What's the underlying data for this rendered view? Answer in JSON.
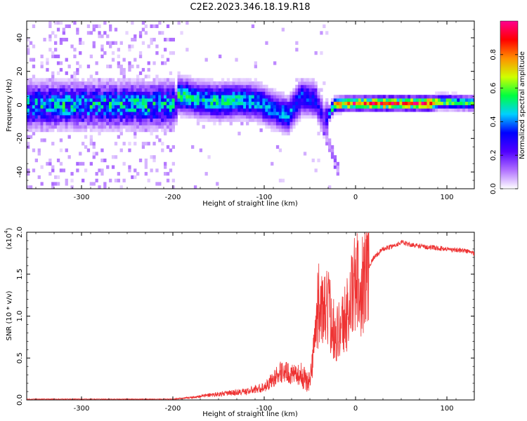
{
  "title": "C2E2.2023.346.18.19.R18",
  "chart_data": [
    {
      "type": "heatmap",
      "xlabel": "Height of straight line (km)",
      "ylabel": "Frequency (Hz)",
      "xlim": [
        -360,
        130
      ],
      "ylim": [
        -50,
        50
      ],
      "xticks": [
        -300,
        -200,
        -100,
        0,
        100
      ],
      "yticks": [
        -40,
        -20,
        0,
        20,
        40
      ],
      "colorbar": {
        "label": "Normalized spectral amplitude",
        "range": [
          0.0,
          1.0
        ],
        "ticks": [
          "0.0",
          "0.2",
          "0.4",
          "0.6",
          "0.8"
        ],
        "colors": [
          "#ffffff",
          "#b070ff",
          "#5000ff",
          "#0000ff",
          "#00d0ff",
          "#00ff40",
          "#d0ff00",
          "#ff9000",
          "#ff0000",
          "#ff0090"
        ]
      },
      "noise_region": [
        -360,
        -200
      ],
      "ridge": [
        {
          "x": -195,
          "f": 6,
          "amp": 0.5
        },
        {
          "x": -170,
          "f": 3,
          "amp": 0.45
        },
        {
          "x": -150,
          "f": 2,
          "amp": 0.5
        },
        {
          "x": -130,
          "f": 3,
          "amp": 0.45
        },
        {
          "x": -110,
          "f": 2,
          "amp": 0.45
        },
        {
          "x": -90,
          "f": -3,
          "amp": 0.4
        },
        {
          "x": -75,
          "f": -6,
          "amp": 0.4
        },
        {
          "x": -60,
          "f": 5,
          "amp": 0.35
        },
        {
          "x": -45,
          "f": 3,
          "amp": 0.3
        },
        {
          "x": -35,
          "f": -10,
          "amp": 0.2
        },
        {
          "x": -25,
          "f": 0,
          "amp": 0.7
        },
        {
          "x": -10,
          "f": 1,
          "amp": 0.8
        },
        {
          "x": 0,
          "f": 1,
          "amp": 0.85
        },
        {
          "x": 30,
          "f": 1,
          "amp": 0.9
        },
        {
          "x": 80,
          "f": 1,
          "amp": 0.9
        },
        {
          "x": 90,
          "f": 2,
          "amp": 0.6
        },
        {
          "x": 130,
          "f": 1,
          "amp": 0.5
        }
      ]
    },
    {
      "type": "line",
      "xlabel": "Height of straight line (km)",
      "ylabel": "SNR (10 * v/v)",
      "yscale_label": "(x10",
      "yscale_exp": "4",
      "xlim": [
        -360,
        130
      ],
      "ylim": [
        0.0,
        2.0
      ],
      "xticks": [
        -300,
        -200,
        -100,
        0,
        100
      ],
      "yticks": [
        "0.0",
        "0.5",
        "1.0",
        "1.5",
        "2.0"
      ],
      "line_color": "#ee3333",
      "series": [
        {
          "x": [
            -360,
            -300,
            -250,
            -200,
            -180,
            -160,
            -140,
            -120,
            -100,
            -90,
            -80,
            -70,
            -60,
            -50,
            -45,
            -40,
            -35,
            -30,
            -25,
            -20,
            -15,
            -10,
            -5,
            0,
            5,
            10,
            15,
            20,
            25,
            30,
            40,
            50,
            60,
            80,
            100,
            120,
            130
          ],
          "values": [
            0.01,
            0.01,
            0.01,
            0.01,
            0.03,
            0.06,
            0.08,
            0.1,
            0.15,
            0.25,
            0.35,
            0.3,
            0.3,
            0.2,
            0.7,
            1.2,
            1.0,
            1.1,
            0.9,
            0.8,
            0.9,
            1.0,
            1.2,
            1.4,
            1.35,
            1.45,
            1.6,
            1.7,
            1.75,
            1.8,
            1.83,
            1.88,
            1.85,
            1.82,
            1.8,
            1.78,
            1.75
          ]
        }
      ]
    }
  ]
}
